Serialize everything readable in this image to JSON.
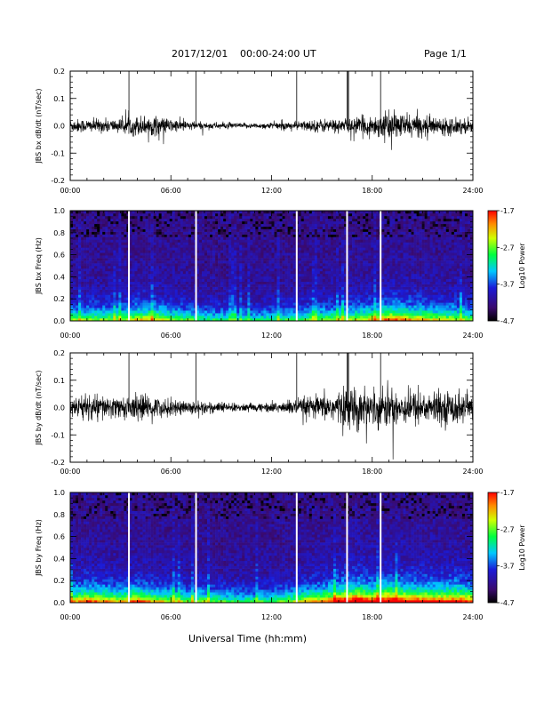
{
  "header": {
    "date": "2017/12/01",
    "range": "00:00-24:00 UT",
    "page": "Page 1/1"
  },
  "xlabel": "Universal Time (hh:mm)",
  "colors": {
    "trace": "#000000",
    "spectrogram_low": "#000000",
    "spectrogram_bg": "#3a1870",
    "colorbar_stops": [
      "#000000",
      "#4b0082",
      "#0000ff",
      "#00ffff",
      "#00ff00",
      "#ffff00",
      "#ff8000",
      "#ff0000"
    ]
  },
  "chart_data": [
    {
      "type": "line",
      "ylabel": "JBS bx dB/dt (nT/sec)",
      "xlim": [
        0,
        24
      ],
      "ylim": [
        -0.2,
        0.2
      ],
      "xticks": [
        "00:00",
        "06:00",
        "12:00",
        "18:00",
        "24:00"
      ],
      "yticks": [
        "-0.2",
        "-0.1",
        "0.0",
        "0.1",
        "0.2"
      ],
      "series": [
        {
          "x_hours": [
            0,
            1,
            2,
            3,
            4,
            5,
            6,
            7,
            8,
            9,
            10,
            11,
            12,
            13,
            14,
            15,
            16,
            17,
            18,
            19,
            20,
            21,
            22,
            23,
            24
          ],
          "typical_amplitude": [
            0.02,
            0.02,
            0.02,
            0.02,
            0.03,
            0.03,
            0.02,
            0.015,
            0.01,
            0.01,
            0.008,
            0.008,
            0.01,
            0.012,
            0.015,
            0.02,
            0.02,
            0.025,
            0.03,
            0.04,
            0.035,
            0.03,
            0.025,
            0.025,
            0.02
          ],
          "min": -0.105,
          "max": 0.2
        }
      ],
      "marker_lines_hours": [
        3.5,
        7.5,
        13.5,
        16.5,
        18.5
      ]
    },
    {
      "type": "heatmap",
      "ylabel": "JBS bx Freq (Hz)",
      "xlim": [
        0,
        24
      ],
      "ylim": [
        0.0,
        1.0
      ],
      "xticks": [
        "00:00",
        "06:00",
        "12:00",
        "18:00",
        "24:00"
      ],
      "yticks": [
        "0.0",
        "0.2",
        "0.4",
        "0.6",
        "0.8",
        "1.0"
      ],
      "colorbar": {
        "label": "Log10 Power",
        "min": -4.7,
        "max": -1.7,
        "ticks": [
          "-1.7",
          "-2.7",
          "-3.7",
          "-4.7"
        ]
      },
      "gaps_hours": [
        3.5,
        7.5,
        13.5,
        16.5,
        18.5
      ]
    },
    {
      "type": "line",
      "ylabel": "JBS by dB/dt (nT/sec)",
      "xlim": [
        0,
        24
      ],
      "ylim": [
        -0.2,
        0.2
      ],
      "xticks": [
        "00:00",
        "06:00",
        "12:00",
        "18:00",
        "24:00"
      ],
      "yticks": [
        "-0.2",
        "-0.1",
        "0.0",
        "0.1",
        "0.2"
      ],
      "series": [
        {
          "x_hours": [
            0,
            1,
            2,
            3,
            4,
            5,
            6,
            7,
            8,
            9,
            10,
            11,
            12,
            13,
            14,
            15,
            16,
            17,
            18,
            19,
            20,
            21,
            22,
            23,
            24
          ],
          "typical_amplitude": [
            0.03,
            0.04,
            0.035,
            0.03,
            0.04,
            0.03,
            0.025,
            0.02,
            0.02,
            0.015,
            0.012,
            0.012,
            0.015,
            0.02,
            0.03,
            0.035,
            0.05,
            0.06,
            0.05,
            0.06,
            0.05,
            0.05,
            0.045,
            0.05,
            0.04
          ],
          "min": -0.19,
          "max": 0.2
        }
      ],
      "marker_lines_hours": [
        3.5,
        7.5,
        13.5,
        16.5,
        18.5
      ]
    },
    {
      "type": "heatmap",
      "ylabel": "JBS by Freq (Hz)",
      "xlim": [
        0,
        24
      ],
      "ylim": [
        0.0,
        1.0
      ],
      "xticks": [
        "00:00",
        "06:00",
        "12:00",
        "18:00",
        "24:00"
      ],
      "yticks": [
        "0.0",
        "0.2",
        "0.4",
        "0.6",
        "0.8",
        "1.0"
      ],
      "colorbar": {
        "label": "Log10 Power",
        "min": -4.7,
        "max": -1.7,
        "ticks": [
          "-1.7",
          "-2.7",
          "-3.7",
          "-4.7"
        ]
      },
      "gaps_hours": [
        3.5,
        7.5,
        13.5,
        16.5,
        18.5
      ]
    }
  ]
}
